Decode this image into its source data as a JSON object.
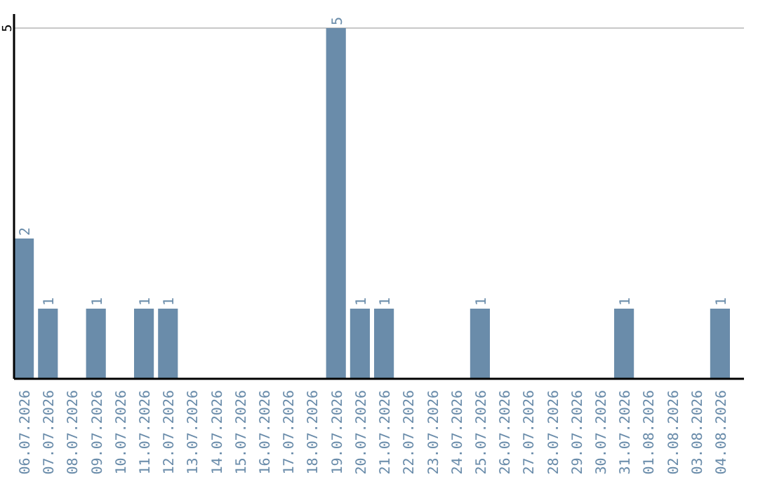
{
  "chart_data": {
    "type": "bar",
    "categories": [
      "06.07.2026",
      "07.07.2026",
      "08.07.2026",
      "09.07.2026",
      "10.07.2026",
      "11.07.2026",
      "12.07.2026",
      "13.07.2026",
      "14.07.2026",
      "15.07.2026",
      "16.07.2026",
      "17.07.2026",
      "18.07.2026",
      "19.07.2026",
      "20.07.2026",
      "21.07.2026",
      "22.07.2026",
      "23.07.2026",
      "24.07.2026",
      "25.07.2026",
      "26.07.2026",
      "27.07.2026",
      "28.07.2026",
      "29.07.2026",
      "30.07.2026",
      "31.07.2026",
      "01.08.2026",
      "02.08.2026",
      "03.08.2026",
      "04.08.2026"
    ],
    "values": [
      2,
      1,
      0,
      1,
      0,
      1,
      1,
      0,
      0,
      0,
      0,
      0,
      0,
      5,
      1,
      1,
      0,
      0,
      0,
      1,
      0,
      0,
      0,
      0,
      0,
      1,
      0,
      0,
      0,
      1
    ],
    "value_labels": [
      "2",
      "1",
      null,
      "1",
      null,
      "1",
      "1",
      null,
      null,
      null,
      null,
      null,
      null,
      "5",
      "1",
      "1",
      null,
      null,
      null,
      "1",
      null,
      null,
      null,
      null,
      null,
      "1",
      null,
      null,
      null,
      "1"
    ],
    "color": "#6a8caa",
    "ylim": [
      0,
      5.2
    ],
    "yticks": [
      5
    ],
    "grid": "y"
  }
}
